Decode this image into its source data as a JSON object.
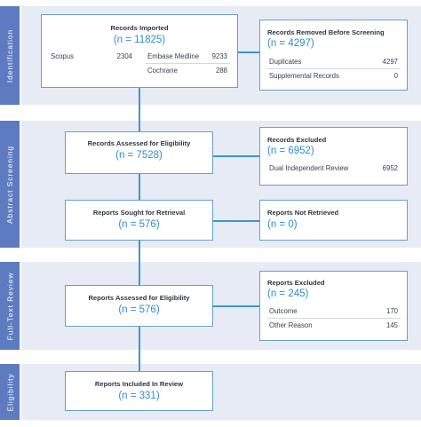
{
  "stages": {
    "identification": "Identification",
    "abstract_screening": "Abstract Screening",
    "full_text_review": "Full-Text Review",
    "eligibility": "Eligibility"
  },
  "records_imported": {
    "title": "Records Imported",
    "count": "(n = 11825)",
    "sources": [
      {
        "label": "Scopus",
        "value": "2304"
      },
      {
        "label": "Embase Medline",
        "value": "9233"
      },
      {
        "label": "Cochrane",
        "value": "288"
      }
    ]
  },
  "records_removed": {
    "title": "Records Removed Before Screening",
    "count": "(n = 4297)",
    "items": [
      {
        "label": "Duplicates",
        "value": "4297"
      },
      {
        "label": "Supplemental Records",
        "value": "0"
      }
    ]
  },
  "records_assessed": {
    "title": "Records Assessed for Eligibility",
    "count": "(n = 7528)"
  },
  "records_excluded": {
    "title": "Records Excluded",
    "count": "(n = 6952)",
    "items": [
      {
        "label": "Dual Independent Review",
        "value": "6952"
      }
    ]
  },
  "reports_sought": {
    "title": "Reports Sought for Retrieval",
    "count": "(n = 576)"
  },
  "reports_not_retrieved": {
    "title": "Reports Not Retrieved",
    "count": "(n = 0)"
  },
  "reports_assessed": {
    "title": "Reports Assessed for Eligibility",
    "count": "(n = 576)"
  },
  "reports_excluded": {
    "title": "Reports Excluded",
    "count": "(n = 245)",
    "items": [
      {
        "label": "Outcome",
        "value": "170"
      },
      {
        "label": "Other Reason",
        "value": "145"
      }
    ]
  },
  "reports_included": {
    "title": "Reports Included In Review",
    "count": "(n = 331)"
  }
}
